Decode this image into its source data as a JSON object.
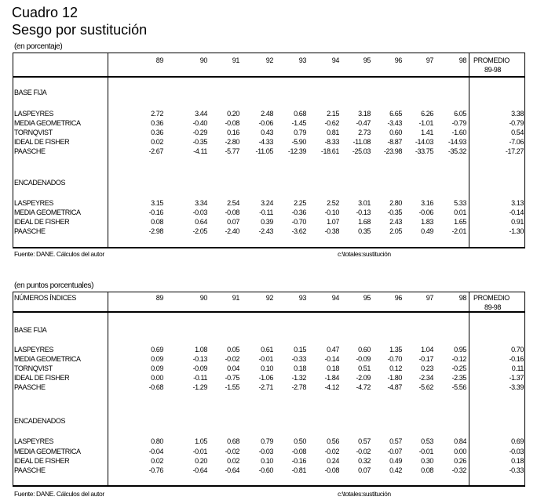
{
  "title": "Cuadro 12",
  "subtitle": "Sesgo por sustitución",
  "columns": [
    "89",
    "90",
    "91",
    "92",
    "93",
    "94",
    "95",
    "96",
    "97",
    "98"
  ],
  "promedio_label": [
    "PROMEDIO",
    "89-98"
  ],
  "tables": [
    {
      "unit": "(en porcentaje)",
      "header_label": "",
      "sections": [
        {
          "title": "BASE FIJA",
          "rows": [
            {
              "label": "LASPEYRES",
              "values": [
                "2.72",
                "3.44",
                "0.20",
                "2.48",
                "0.68",
                "2.15",
                "3.18",
                "6.65",
                "6.26",
                "6.05"
              ],
              "promedio": "3.38"
            },
            {
              "label": "MEDIA GEOMETRICA",
              "values": [
                "0.36",
                "-0.40",
                "-0.08",
                "-0.06",
                "-1.45",
                "-0.62",
                "-0.47",
                "-3.43",
                "-1.01",
                "-0.79"
              ],
              "promedio": "-0.79"
            },
            {
              "label": "TORNQVIST",
              "values": [
                "0.36",
                "-0.29",
                "0.16",
                "0.43",
                "0.79",
                "0.81",
                "2.73",
                "0.60",
                "1.41",
                "-1.60"
              ],
              "promedio": "0.54"
            },
            {
              "label": "IDEAL DE FISHER",
              "values": [
                "0.02",
                "-0.35",
                "-2.80",
                "-4.33",
                "-5.90",
                "-8.33",
                "-11.08",
                "-8.87",
                "-14.03",
                "-14.93"
              ],
              "promedio": "-7.06"
            },
            {
              "label": "PAASCHE",
              "values": [
                "-2.67",
                "-4.11",
                "-5.77",
                "-11.05",
                "-12.39",
                "-18.61",
                "-25.03",
                "-23.98",
                "-33.75",
                "-35.32"
              ],
              "promedio": "-17.27"
            }
          ]
        },
        {
          "title": "ENCADENADOS",
          "rows": [
            {
              "label": "LASPEYRES",
              "values": [
                "3.15",
                "3.34",
                "2.54",
                "3.24",
                "2.25",
                "2.52",
                "3.01",
                "2.80",
                "3.16",
                "5.33"
              ],
              "promedio": "3.13"
            },
            {
              "label": "MEDIA GEOMETRICA",
              "values": [
                "-0.16",
                "-0.03",
                "-0.08",
                "-0.11",
                "-0.36",
                "-0.10",
                "-0.13",
                "-0.35",
                "-0.06",
                "0.01"
              ],
              "promedio": "-0.14"
            },
            {
              "label": "IDEAL DE FISHER",
              "values": [
                "0.08",
                "0.64",
                "0.07",
                "0.39",
                "-0.70",
                "1.07",
                "1.68",
                "2.43",
                "1.83",
                "1.65"
              ],
              "promedio": "0.91"
            },
            {
              "label": "PAASCHE",
              "values": [
                "-2.98",
                "-2.05",
                "-2.40",
                "-2.43",
                "-3.62",
                "-0.38",
                "0.35",
                "2.05",
                "0.49",
                "-2.01"
              ],
              "promedio": "-1.30"
            }
          ]
        }
      ],
      "source": "Fuente: DANE. Cálculos del autor",
      "file": "c:\\totales:sustitución"
    },
    {
      "unit": "(en puntos porcentuales)",
      "header_label": "NÚMEROS ÍNDICES",
      "sections": [
        {
          "title": "BASE FIJA",
          "rows": [
            {
              "label": "LASPEYRES",
              "values": [
                "0.69",
                "1.08",
                "0.05",
                "0.61",
                "0.15",
                "0.47",
                "0.60",
                "1.35",
                "1.04",
                "0.95"
              ],
              "promedio": "0.70"
            },
            {
              "label": "MEDIA GEOMETRICA",
              "values": [
                "0.09",
                "-0.13",
                "-0.02",
                "-0.01",
                "-0.33",
                "-0.14",
                "-0.09",
                "-0.70",
                "-0.17",
                "-0.12"
              ],
              "promedio": "-0.16"
            },
            {
              "label": "TORNQVIST",
              "values": [
                "0.09",
                "-0.09",
                "0.04",
                "0.10",
                "0.18",
                "0.18",
                "0.51",
                "0.12",
                "0.23",
                "-0.25"
              ],
              "promedio": "0.11"
            },
            {
              "label": "IDEAL DE FISHER",
              "values": [
                "0.00",
                "-0.11",
                "-0.75",
                "-1.06",
                "-1.32",
                "-1.84",
                "-2.09",
                "-1.80",
                "-2.34",
                "-2.35"
              ],
              "promedio": "-1.37"
            },
            {
              "label": "PAASCHE",
              "values": [
                "-0.68",
                "-1.29",
                "-1.55",
                "-2.71",
                "-2.78",
                "-4.12",
                "-4.72",
                "-4.87",
                "-5.62",
                "-5.56"
              ],
              "promedio": "-3.39"
            }
          ]
        },
        {
          "title": "ENCADENADOS",
          "rows": [
            {
              "label": "LASPEYRES",
              "values": [
                "0.80",
                "1.05",
                "0.68",
                "0.79",
                "0.50",
                "0.56",
                "0.57",
                "0.57",
                "0.53",
                "0.84"
              ],
              "promedio": "0.69"
            },
            {
              "label": "MEDIA GEOMETRICA",
              "values": [
                "-0.04",
                "-0.01",
                "-0.02",
                "-0.03",
                "-0.08",
                "-0.02",
                "-0.02",
                "-0.07",
                "-0.01",
                "0.00"
              ],
              "promedio": "-0.03"
            },
            {
              "label": "IDEAL DE FISHER",
              "values": [
                "0.02",
                "0.20",
                "0.02",
                "0.10",
                "-0.16",
                "0.24",
                "0.32",
                "0.49",
                "0.30",
                "0.26"
              ],
              "promedio": "0.18"
            },
            {
              "label": "PAASCHE",
              "values": [
                "-0.76",
                "-0.64",
                "-0.64",
                "-0.60",
                "-0.81",
                "-0.08",
                "0.07",
                "0.42",
                "0.08",
                "-0.32"
              ],
              "promedio": "-0.33"
            }
          ]
        }
      ],
      "source": "Fuente: DANE. Cálculos del autor",
      "file": "c:\\totales:sustitución"
    }
  ]
}
